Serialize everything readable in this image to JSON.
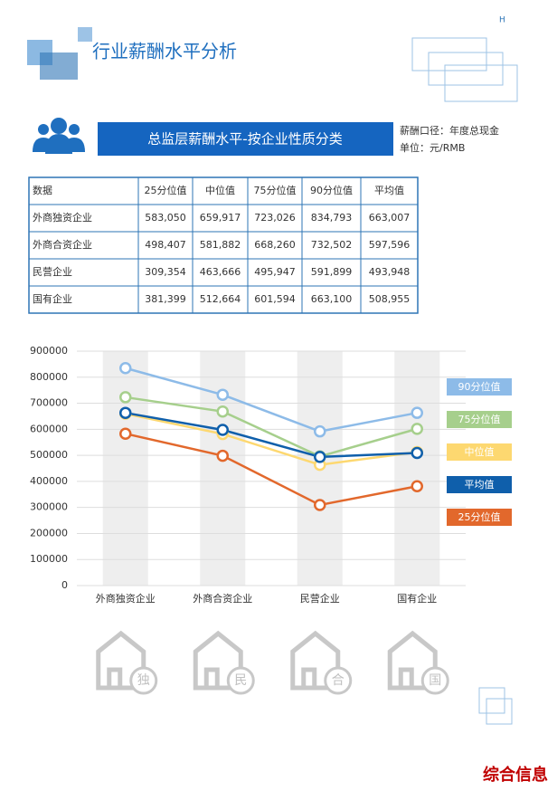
{
  "header": {
    "title": "行业薪酬水平分析",
    "mark": "H"
  },
  "section": {
    "title": "总监层薪酬水平-按企业性质分类",
    "notes": [
      "薪酬口径：年度总现金",
      "单位：元/RMB"
    ]
  },
  "table": {
    "header": [
      "数据",
      "25分位值",
      "中位值",
      "75分位值",
      "90分位值",
      "平均值"
    ],
    "rows": [
      [
        "外商独资企业",
        "583,050",
        "659,917",
        "723,026",
        "834,793",
        "663,007"
      ],
      [
        "外商合资企业",
        "498,407",
        "581,882",
        "668,260",
        "732,502",
        "597,596"
      ],
      [
        "民营企业",
        "309,354",
        "463,666",
        "495,947",
        "591,899",
        "493,948"
      ],
      [
        "国有企业",
        "381,399",
        "512,664",
        "601,594",
        "663,100",
        "508,955"
      ]
    ]
  },
  "chart_data": {
    "type": "line",
    "categories": [
      "外商独资企业",
      "外商合资企业",
      "民营企业",
      "国有企业"
    ],
    "series": [
      {
        "name": "90分位值",
        "color": "#8dbbe8",
        "values": [
          834793,
          732502,
          591899,
          663100
        ]
      },
      {
        "name": "75分位值",
        "color": "#a6cf8c",
        "values": [
          723026,
          668260,
          495947,
          601594
        ]
      },
      {
        "name": "中位值",
        "color": "#fdd870",
        "values": [
          659917,
          581882,
          463666,
          512664
        ]
      },
      {
        "name": "平均值",
        "color": "#0f5fab",
        "values": [
          663007,
          597596,
          493948,
          508955
        ]
      },
      {
        "name": "25分位值",
        "color": "#e2682c",
        "values": [
          583050,
          498407,
          309354,
          381399
        ]
      }
    ],
    "ylim": [
      0,
      900000
    ],
    "yticks": [
      0,
      100000,
      200000,
      300000,
      400000,
      500000,
      600000,
      700000,
      800000,
      900000
    ],
    "grid": true,
    "legend": "right"
  },
  "icons": [
    "独",
    "民",
    "合",
    "国"
  ],
  "footer": {
    "label": "综合信息"
  }
}
